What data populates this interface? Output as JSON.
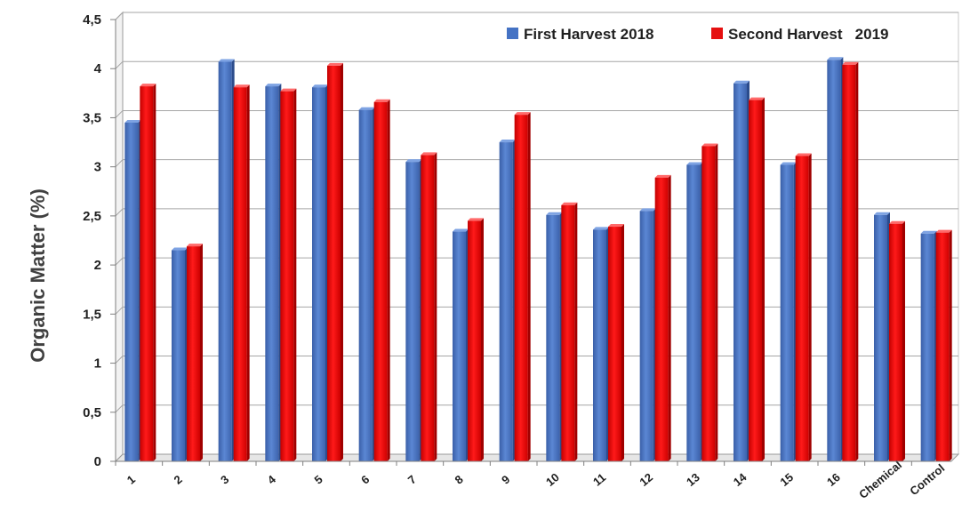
{
  "chart_data": {
    "type": "bar",
    "ylabel": "Organic Matter (%)",
    "ylim": [
      0,
      4.5
    ],
    "yticks": [
      "0",
      "0,5",
      "1",
      "1,5",
      "2",
      "2,5",
      "3",
      "3,5",
      "4",
      "4,5"
    ],
    "grid": true,
    "legend_position": "top-right",
    "categories": [
      "1",
      "2",
      "3",
      "4",
      "5",
      "6",
      "7",
      "8",
      "9",
      "10",
      "11",
      "12",
      "13",
      "14",
      "15",
      "16",
      "Chemical",
      "Control"
    ],
    "series": [
      {
        "name": "First Harvest 2018",
        "color": "#4472c4",
        "values": [
          3.45,
          2.15,
          4.07,
          3.82,
          3.81,
          3.58,
          3.05,
          2.34,
          3.25,
          2.51,
          2.36,
          2.55,
          3.02,
          3.85,
          3.02,
          4.09,
          2.51,
          2.32
        ]
      },
      {
        "name": "Second Harvest   2019",
        "color": "#e51010",
        "values": [
          3.82,
          2.19,
          3.81,
          3.77,
          4.03,
          3.66,
          3.12,
          2.45,
          3.53,
          2.61,
          2.39,
          2.89,
          3.21,
          3.68,
          3.11,
          4.04,
          2.42,
          2.33
        ]
      }
    ]
  }
}
